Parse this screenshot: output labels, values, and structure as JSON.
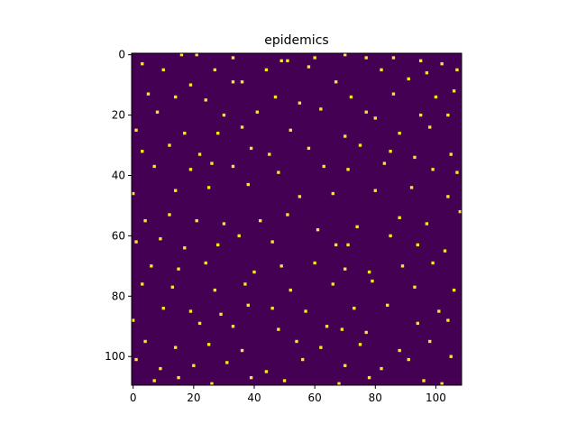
{
  "chart_data": {
    "type": "heatmap",
    "title": "epidemics",
    "background_color": "#440154",
    "color": "#fde725",
    "xlim": [
      -0.5,
      108.5
    ],
    "ylim": [
      109.5,
      -0.5
    ],
    "xticks": [
      0,
      20,
      40,
      60,
      80,
      100
    ],
    "yticks": [
      0,
      20,
      40,
      60,
      80,
      100
    ],
    "x": [
      16,
      21,
      33,
      49,
      51,
      60,
      70,
      77,
      86,
      95,
      102,
      3,
      10,
      27,
      44,
      58,
      82,
      97,
      107,
      19,
      33,
      36,
      67,
      91,
      5,
      14,
      24,
      47,
      55,
      72,
      86,
      100,
      106,
      8,
      30,
      41,
      62,
      77,
      80,
      95,
      104,
      1,
      17,
      28,
      36,
      52,
      70,
      88,
      98,
      3,
      12,
      22,
      39,
      45,
      58,
      75,
      85,
      93,
      105,
      7,
      19,
      26,
      33,
      48,
      63,
      71,
      83,
      99,
      107,
      0,
      14,
      25,
      38,
      55,
      66,
      80,
      92,
      104,
      4,
      12,
      21,
      30,
      42,
      51,
      61,
      74,
      88,
      97,
      108,
      1,
      9,
      17,
      28,
      35,
      46,
      67,
      71,
      85,
      94,
      103,
      6,
      15,
      24,
      40,
      49,
      60,
      70,
      78,
      89,
      99,
      3,
      13,
      27,
      37,
      52,
      66,
      79,
      93,
      106,
      10,
      19,
      29,
      38,
      46,
      57,
      73,
      84,
      101,
      0,
      22,
      33,
      48,
      64,
      69,
      77,
      94,
      104,
      4,
      14,
      25,
      36,
      54,
      62,
      75,
      88,
      98,
      1,
      9,
      20,
      31,
      44,
      56,
      70,
      82,
      91,
      105,
      7,
      15,
      26,
      39,
      50,
      68,
      78,
      96,
      102
    ],
    "y": [
      0,
      0,
      1,
      2,
      2,
      1,
      0,
      1,
      1,
      2,
      3,
      3,
      5,
      5,
      5,
      4,
      5,
      6,
      5,
      10,
      9,
      9,
      9,
      8,
      13,
      14,
      15,
      14,
      16,
      14,
      13,
      14,
      12,
      19,
      20,
      19,
      18,
      19,
      21,
      20,
      20,
      25,
      26,
      26,
      24,
      25,
      27,
      26,
      24,
      32,
      30,
      33,
      31,
      33,
      31,
      30,
      32,
      34,
      33,
      37,
      38,
      36,
      37,
      39,
      37,
      38,
      36,
      38,
      39,
      46,
      45,
      44,
      43,
      47,
      46,
      45,
      44,
      47,
      55,
      53,
      55,
      56,
      55,
      53,
      58,
      57,
      54,
      56,
      52,
      62,
      61,
      64,
      63,
      60,
      62,
      63,
      63,
      60,
      63,
      65,
      70,
      71,
      69,
      72,
      70,
      69,
      71,
      72,
      70,
      69,
      76,
      77,
      78,
      76,
      78,
      76,
      75,
      77,
      78,
      84,
      85,
      86,
      83,
      84,
      85,
      84,
      83,
      85,
      88,
      89,
      90,
      91,
      90,
      91,
      92,
      89,
      88,
      95,
      97,
      96,
      98,
      95,
      97,
      96,
      98,
      95,
      101,
      104,
      103,
      102,
      105,
      101,
      103,
      104,
      101,
      100,
      108,
      107,
      109,
      107,
      108,
      109,
      107,
      108,
      109
    ]
  }
}
